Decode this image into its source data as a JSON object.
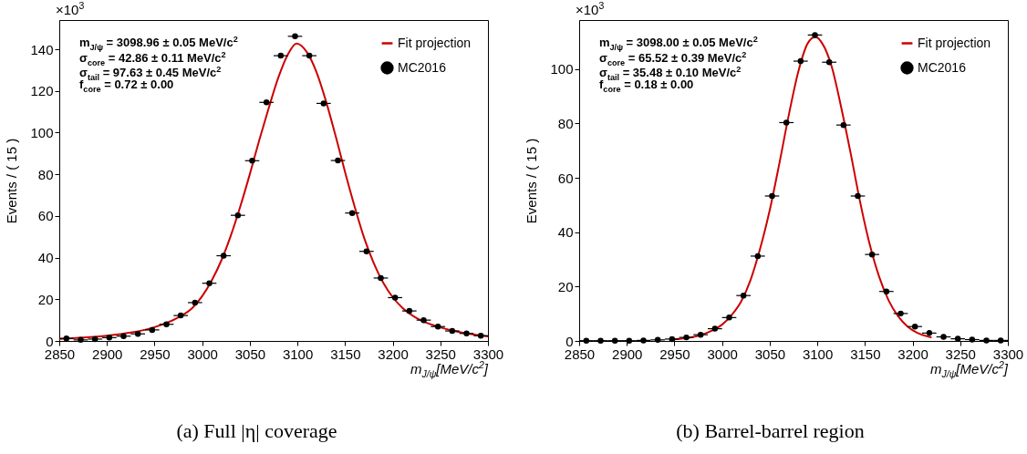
{
  "chart_data": [
    {
      "type": "scatter",
      "title": "(a) Full |η| coverage",
      "xlabel": "m$_{J/ψ}$[MeV/c$^{2}$]",
      "ylabel": "Events / ( 15 )",
      "xlim": [
        2850,
        3300
      ],
      "xticks": [
        2850,
        2900,
        2950,
        3000,
        3050,
        3100,
        3150,
        3200,
        3250,
        3300
      ],
      "ylim": [
        0,
        154
      ],
      "yticks": [
        0,
        20,
        40,
        60,
        80,
        100,
        120,
        140
      ],
      "legend": "top right",
      "annotations": [
        "×10$^{3}$",
        "m$_{J/ψ}$ = 3098.96 ± 0.05 MeV/c$^{2}$",
        "σ$_{core}$ = 42.86 ± 0.11 MeV/c$^{2}$",
        "σ$_{tail}$ = 97.63 ± 0.45 MeV/c$^{2}$",
        "f$_{core}$ = 0.72 ± 0.00"
      ],
      "series": [
        {
          "name": "Fit projection",
          "type": "line",
          "color": "#cc0000",
          "x": [
            2850,
            2875,
            2900,
            2925,
            2950,
            2975,
            2990,
            3000,
            3010,
            3020,
            3030,
            3040,
            3050,
            3060,
            3070,
            3080,
            3090,
            3099,
            3110,
            3120,
            3130,
            3140,
            3150,
            3160,
            3170,
            3180,
            3190,
            3200,
            3210,
            3225,
            3250,
            3275,
            3300
          ],
          "values": [
            1.0,
            1.6,
            2.5,
            4.0,
            6.6,
            11.3,
            16.0,
            21.5,
            29.0,
            38.5,
            50.5,
            64.5,
            80.0,
            96.5,
            112.0,
            126.5,
            137.5,
            142.7,
            138.5,
            129.0,
            115.0,
            98.5,
            81.0,
            64.5,
            49.5,
            37.5,
            28.0,
            21.0,
            16.0,
            11.0,
            6.5,
            3.8,
            2.2
          ]
        },
        {
          "name": "MC2016",
          "type": "scatter",
          "marker": "circle",
          "color": "#000000",
          "x": [
            2857.5,
            2872.5,
            2887.5,
            2902.5,
            2917.5,
            2932.5,
            2947.5,
            2962.5,
            2977.5,
            2992.5,
            3007.5,
            3022.5,
            3037.5,
            3052.5,
            3067.5,
            3082.5,
            3097.5,
            3112.5,
            3127.5,
            3142.5,
            3157.5,
            3172.5,
            3187.5,
            3202.5,
            3217.5,
            3232.5,
            3247.5,
            3262.5,
            3277.5,
            3292.5
          ],
          "values": [
            1.2,
            0.5,
            0.9,
            1.6,
            2.3,
            3.4,
            5.3,
            8.0,
            12.2,
            18.4,
            27.7,
            40.9,
            60.3,
            86.5,
            114.5,
            136.9,
            146.2,
            136.9,
            114.0,
            86.6,
            61.4,
            43.0,
            30.2,
            20.8,
            14.4,
            10.0,
            6.9,
            4.8,
            3.6,
            2.5
          ],
          "xerrors": [
            7.5,
            7.5,
            7.5,
            7.5,
            7.5,
            7.5,
            7.5,
            7.5,
            7.5,
            7.5,
            7.5,
            7.5,
            7.5,
            7.5,
            7.5,
            7.5,
            7.5,
            7.5,
            7.5,
            7.5,
            7.5,
            7.5,
            7.5,
            7.5,
            7.5,
            7.5,
            7.5,
            7.5,
            7.5,
            7.5
          ]
        }
      ]
    },
    {
      "type": "scatter",
      "title": "(b) Barrel-barrel region",
      "xlabel": "m$_{J/ψ}$[MeV/c$^{2}$]",
      "ylabel": "Events / ( 15 )",
      "xlim": [
        2850,
        3300
      ],
      "xticks": [
        2850,
        2900,
        2950,
        3000,
        3050,
        3100,
        3150,
        3200,
        3250,
        3300
      ],
      "ylim": [
        0,
        118
      ],
      "yticks": [
        0,
        20,
        40,
        60,
        80,
        100
      ],
      "legend": "top right",
      "annotations": [
        "×10$^{3}$",
        "m$_{J/ψ}$ = 3098.00 ± 0.05 MeV/c$^{2}$",
        "σ$_{core}$ = 65.52 ± 0.39 MeV/c$^{2}$",
        "σ$_{tail}$ = 35.48 ± 0.10 MeV/c$^{2}$",
        "f$_{core}$ = 0.18 ± 0.00"
      ],
      "series": [
        {
          "name": "Fit projection",
          "type": "line",
          "color": "#cc0000",
          "x": [
            2950,
            2975,
            2990,
            3000,
            3010,
            3020,
            3030,
            3040,
            3050,
            3060,
            3070,
            3080,
            3090,
            3098,
            3105,
            3115,
            3125,
            3135,
            3145,
            3155,
            3165,
            3175,
            3185,
            3195,
            3205,
            3220
          ],
          "values": [
            0.6,
            1.9,
            3.9,
            6.0,
            9.5,
            14.5,
            22.5,
            34.0,
            48.0,
            65.0,
            83.0,
            99.0,
            109.5,
            111.8,
            109.5,
            101.0,
            86.0,
            69.0,
            51.0,
            35.5,
            23.5,
            14.8,
            9.0,
            5.2,
            3.0,
            1.3
          ]
        },
        {
          "name": "MC2016",
          "type": "scatter",
          "marker": "circle",
          "color": "#000000",
          "x": [
            2857.5,
            2872.5,
            2887.5,
            2902.5,
            2917.5,
            2932.5,
            2947.5,
            2962.5,
            2977.5,
            2992.5,
            3007.5,
            3022.5,
            3037.5,
            3052.5,
            3067.5,
            3082.5,
            3097.5,
            3112.5,
            3127.5,
            3142.5,
            3157.5,
            3172.5,
            3187.5,
            3202.5,
            3217.5,
            3232.5,
            3247.5,
            3262.5,
            3277.5,
            3292.5
          ],
          "values": [
            0.1,
            0.1,
            0.1,
            0.1,
            0.2,
            0.4,
            0.7,
            1.3,
            2.3,
            4.5,
            8.6,
            16.7,
            31.2,
            53.3,
            80.3,
            102.9,
            112.5,
            102.5,
            79.4,
            53.3,
            31.8,
            18.2,
            10.1,
            5.3,
            2.9,
            1.5,
            0.8,
            0.5,
            0.2,
            0.2
          ],
          "xerrors": [
            7.5,
            7.5,
            7.5,
            7.5,
            7.5,
            7.5,
            7.5,
            7.5,
            7.5,
            7.5,
            7.5,
            7.5,
            7.5,
            7.5,
            7.5,
            7.5,
            7.5,
            7.5,
            7.5,
            7.5,
            7.5,
            7.5,
            7.5,
            7.5,
            7.5,
            7.5,
            7.5,
            7.5,
            7.5,
            7.5
          ]
        }
      ]
    }
  ]
}
